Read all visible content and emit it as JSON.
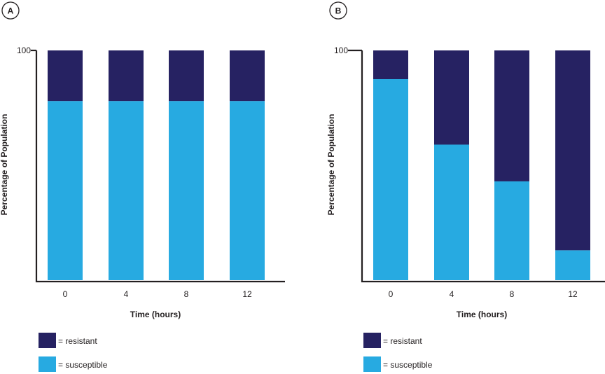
{
  "chart_data": [
    {
      "type": "bar",
      "stacked": true,
      "panel_label": "A",
      "xlabel": "Time (hours)",
      "ylabel": "Percentage of Population",
      "categories": [
        "0",
        "4",
        "8",
        "12"
      ],
      "ylim": [
        0,
        100
      ],
      "yticks": [
        100
      ],
      "ytick_labels": [
        "100"
      ],
      "series": [
        {
          "name": "susceptible",
          "legend_label": "= susceptible",
          "color": "#27aae1",
          "values": [
            78,
            78,
            78,
            78
          ]
        },
        {
          "name": "resistant",
          "legend_label": "= resistant",
          "color": "#262262",
          "values": [
            22,
            22,
            22,
            22
          ]
        }
      ],
      "grid": false,
      "legend_position": "bottom-left"
    },
    {
      "type": "bar",
      "stacked": true,
      "panel_label": "B",
      "xlabel": "Time (hours)",
      "ylabel": "Percentage of Population",
      "categories": [
        "0",
        "4",
        "8",
        "12"
      ],
      "ylim": [
        0,
        100
      ],
      "yticks": [
        100
      ],
      "ytick_labels": [
        "100"
      ],
      "series": [
        {
          "name": "susceptible",
          "legend_label": "= susceptible",
          "color": "#27aae1",
          "values": [
            87.5,
            59,
            43,
            13
          ]
        },
        {
          "name": "resistant",
          "legend_label": "= resistant",
          "color": "#262262",
          "values": [
            12.5,
            41,
            57,
            87
          ]
        }
      ],
      "grid": false,
      "legend_position": "bottom-left"
    }
  ]
}
